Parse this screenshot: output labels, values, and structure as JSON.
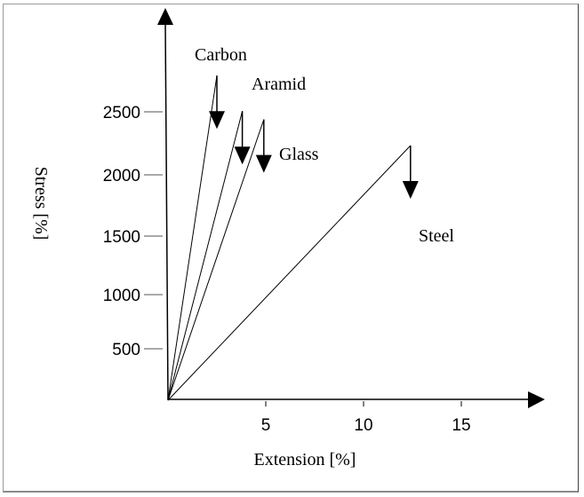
{
  "chart_data": {
    "type": "line",
    "title": "",
    "xlabel": "Extension [%]",
    "ylabel": "Stress [%]",
    "xlim": [
      0,
      17
    ],
    "ylim": [
      0,
      3100
    ],
    "x_ticks": [
      5,
      10,
      15
    ],
    "x_tick_labels": [
      "5",
      "10",
      "15"
    ],
    "y_ticks": [
      500,
      1000,
      1500,
      2000,
      2500
    ],
    "y_tick_labels": [
      "500",
      "1000",
      "1500",
      "2000",
      "2500"
    ],
    "grid": false,
    "legend": "none (direct labels)",
    "series": [
      {
        "name": "Carbon",
        "x": [
          0,
          2.5
        ],
        "y": [
          0,
          2740
        ],
        "failure_arrow": true
      },
      {
        "name": "Aramid",
        "x": [
          0,
          3.8
        ],
        "y": [
          0,
          2440
        ],
        "failure_arrow": true
      },
      {
        "name": "Glass",
        "x": [
          0,
          4.9
        ],
        "y": [
          0,
          2370
        ],
        "failure_arrow": true
      },
      {
        "name": "Steel",
        "x": [
          0,
          12.4
        ],
        "y": [
          0,
          2150
        ],
        "failure_arrow": true
      }
    ]
  }
}
